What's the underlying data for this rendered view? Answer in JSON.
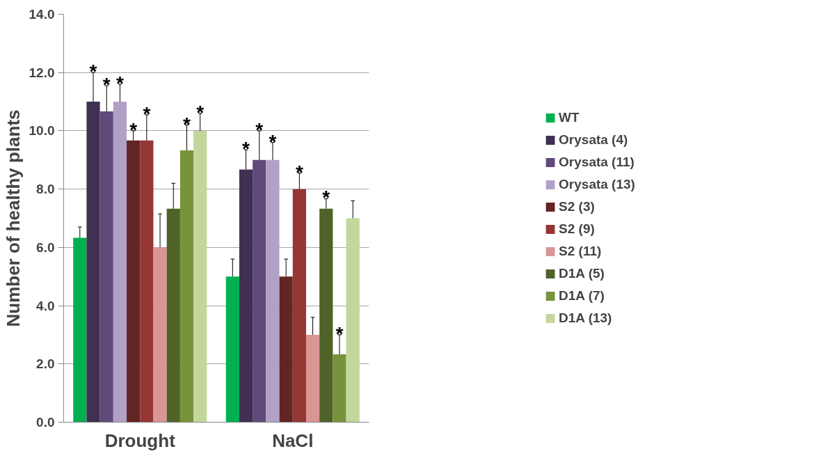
{
  "chart_data": {
    "type": "bar",
    "ylabel": "Number of healthy plants",
    "categories": [
      "Drought",
      "NaCl"
    ],
    "ylim": [
      0,
      14
    ],
    "yticks": [
      {
        "value": 0,
        "label": "0.0"
      },
      {
        "value": 2,
        "label": "2.0"
      },
      {
        "value": 4,
        "label": "4.0"
      },
      {
        "value": 6,
        "label": "6.0"
      },
      {
        "value": 8,
        "label": "8.0"
      },
      {
        "value": 10,
        "label": "10.0"
      },
      {
        "value": 12,
        "label": "12.0"
      },
      {
        "value": 14,
        "label": "14.0"
      }
    ],
    "grid": "y",
    "legend": "right",
    "series": [
      {
        "name": "WT",
        "color": "#00b050",
        "values": [
          6.33,
          5.0
        ],
        "errors": [
          [
            6.33,
            6.7
          ],
          [
            5.0,
            5.6
          ]
        ],
        "value_labels": [
          null,
          null
        ]
      },
      {
        "name": "Orysata (4)",
        "color": "#403152",
        "values": [
          11.0,
          8.67
        ],
        "errors": [
          [
            11.0,
            12.0
          ],
          [
            8.67,
            9.35
          ]
        ],
        "value_labels": [
          "*",
          "*"
        ]
      },
      {
        "name": "Orysata (11)",
        "color": "#604a7b",
        "values": [
          10.67,
          9.0
        ],
        "errors": [
          [
            10.67,
            11.55
          ],
          [
            9.0,
            10.0
          ]
        ],
        "value_labels": [
          "*",
          "*"
        ]
      },
      {
        "name": "Orysata (13)",
        "color": "#b2a1c7",
        "values": [
          11.0,
          9.0
        ],
        "errors": [
          [
            11.0,
            11.6
          ],
          [
            9.0,
            9.6
          ]
        ],
        "value_labels": [
          "*",
          "*"
        ]
      },
      {
        "name": "S2 (3)",
        "color": "#632523",
        "values": [
          9.67,
          5.0
        ],
        "errors": [
          [
            9.67,
            10.0
          ],
          [
            5.0,
            5.6
          ]
        ],
        "value_labels": [
          "*",
          null
        ]
      },
      {
        "name": "S2 (9)",
        "color": "#953735",
        "values": [
          9.67,
          8.0
        ],
        "errors": [
          [
            9.67,
            10.55
          ],
          [
            8.0,
            8.55
          ]
        ],
        "value_labels": [
          "*",
          "*"
        ]
      },
      {
        "name": "S2 (11)",
        "color": "#d99694",
        "values": [
          6.0,
          3.0
        ],
        "errors": [
          [
            6.0,
            7.15
          ],
          [
            3.0,
            3.6
          ]
        ],
        "value_labels": [
          null,
          null
        ]
      },
      {
        "name": "D1A (5)",
        "color": "#4f6228",
        "values": [
          7.33,
          7.33
        ],
        "errors": [
          [
            7.33,
            8.2
          ],
          [
            7.33,
            7.67
          ]
        ],
        "value_labels": [
          null,
          "*"
        ]
      },
      {
        "name": "D1A (7)",
        "color": "#77933c",
        "values": [
          9.33,
          2.33
        ],
        "errors": [
          [
            9.33,
            10.2
          ],
          [
            2.33,
            3.0
          ]
        ],
        "value_labels": [
          "*",
          "*"
        ]
      },
      {
        "name": "D1A (13)",
        "color": "#c3d69b",
        "values": [
          10.0,
          7.0
        ],
        "errors": [
          [
            10.0,
            10.6
          ],
          [
            7.0,
            7.6
          ]
        ],
        "value_labels": [
          "*",
          null
        ]
      }
    ]
  }
}
